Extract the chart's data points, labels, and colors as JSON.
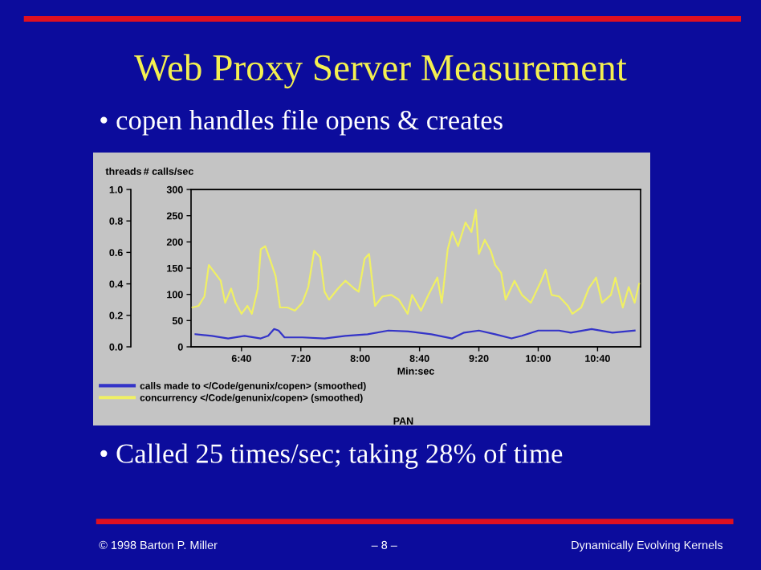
{
  "chart_data": {
    "type": "line",
    "title": "Web Proxy Server Measurement",
    "xlabel": "Min:sec",
    "ylabel": "# calls/sec",
    "y2label": "threads",
    "annotations": [
      "• copen handles file opens & creates",
      "• Called 25 times/sec; taking 28% of time",
      "© 1998 Barton P. Miller",
      "– 8 –",
      "Dynamically Evolving Kernels",
      "PAN"
    ],
    "series": [
      {
        "name": "calls made to </Code/genunix/copen> (smoothed)",
        "color": "#3434c8",
        "x": [
          369,
          380,
          391,
          402,
          413,
          418,
          422,
          425,
          429,
          441,
          456,
          470,
          485,
          499,
          514,
          528,
          542,
          550,
          560,
          571,
          582,
          589,
          600,
          614,
          622,
          636,
          650,
          665
        ],
        "values": [
          24,
          21,
          16,
          21,
          16,
          21,
          34,
          31,
          18,
          18,
          16,
          21,
          24,
          31,
          29,
          24,
          16,
          27,
          31,
          24,
          16,
          21,
          31,
          31,
          27,
          34,
          27,
          31
        ]
      },
      {
        "name": "concurrency </Code/genunix/copen> (smoothed)",
        "color": "#f0f064",
        "axis": "y2",
        "x": [
          367,
          371,
          375,
          378,
          382,
          386,
          389,
          393,
          396,
          400,
          404,
          407,
          411,
          413,
          416,
          419,
          423,
          426,
          431,
          436,
          441,
          445,
          449,
          453,
          456,
          459,
          465,
          470,
          476,
          479,
          483,
          486,
          490,
          495,
          501,
          506,
          512,
          515,
          521,
          526,
          532,
          535,
          539,
          542,
          546,
          551,
          555,
          558,
          560,
          564,
          568,
          571,
          575,
          578,
          584,
          589,
          595,
          602,
          605,
          609,
          614,
          620,
          623,
          629,
          634,
          639,
          643,
          649,
          652,
          657,
          661,
          665,
          668
        ],
        "values": [
          0.25,
          0.26,
          0.32,
          0.52,
          0.47,
          0.42,
          0.28,
          0.37,
          0.28,
          0.21,
          0.26,
          0.21,
          0.37,
          0.62,
          0.64,
          0.56,
          0.45,
          0.25,
          0.25,
          0.23,
          0.28,
          0.38,
          0.61,
          0.57,
          0.35,
          0.3,
          0.37,
          0.42,
          0.37,
          0.35,
          0.56,
          0.59,
          0.26,
          0.32,
          0.33,
          0.3,
          0.21,
          0.33,
          0.23,
          0.33,
          0.44,
          0.28,
          0.62,
          0.73,
          0.64,
          0.79,
          0.73,
          0.87,
          0.59,
          0.68,
          0.61,
          0.52,
          0.47,
          0.3,
          0.42,
          0.33,
          0.28,
          0.42,
          0.49,
          0.33,
          0.32,
          0.26,
          0.21,
          0.25,
          0.37,
          0.44,
          0.28,
          0.33,
          0.44,
          0.25,
          0.38,
          0.28,
          0.4
        ]
      }
    ],
    "xlim": [
      366,
      669
    ],
    "xticks": [
      {
        "value": 400,
        "label": "6:40"
      },
      {
        "value": 440,
        "label": "7:20"
      },
      {
        "value": 480,
        "label": "8:00"
      },
      {
        "value": 520,
        "label": "8:40"
      },
      {
        "value": 560,
        "label": "9:20"
      },
      {
        "value": 600,
        "label": "10:00"
      },
      {
        "value": 640,
        "label": "10:40"
      }
    ],
    "ylim": [
      0,
      300
    ],
    "yticks": [
      0,
      50,
      100,
      150,
      200,
      250,
      300
    ],
    "y2lim": [
      0,
      1
    ],
    "y2ticks": [
      {
        "value": 0,
        "label": "0.0"
      },
      {
        "value": 0.2,
        "label": "0.2"
      },
      {
        "value": 0.4,
        "label": "0.4"
      },
      {
        "value": 0.6,
        "label": "0.6"
      },
      {
        "value": 0.8,
        "label": "0.8"
      },
      {
        "value": 1,
        "label": "1.0"
      }
    ],
    "legend": "bottom",
    "grid": false,
    "marker": "none",
    "line_style": "solid"
  }
}
